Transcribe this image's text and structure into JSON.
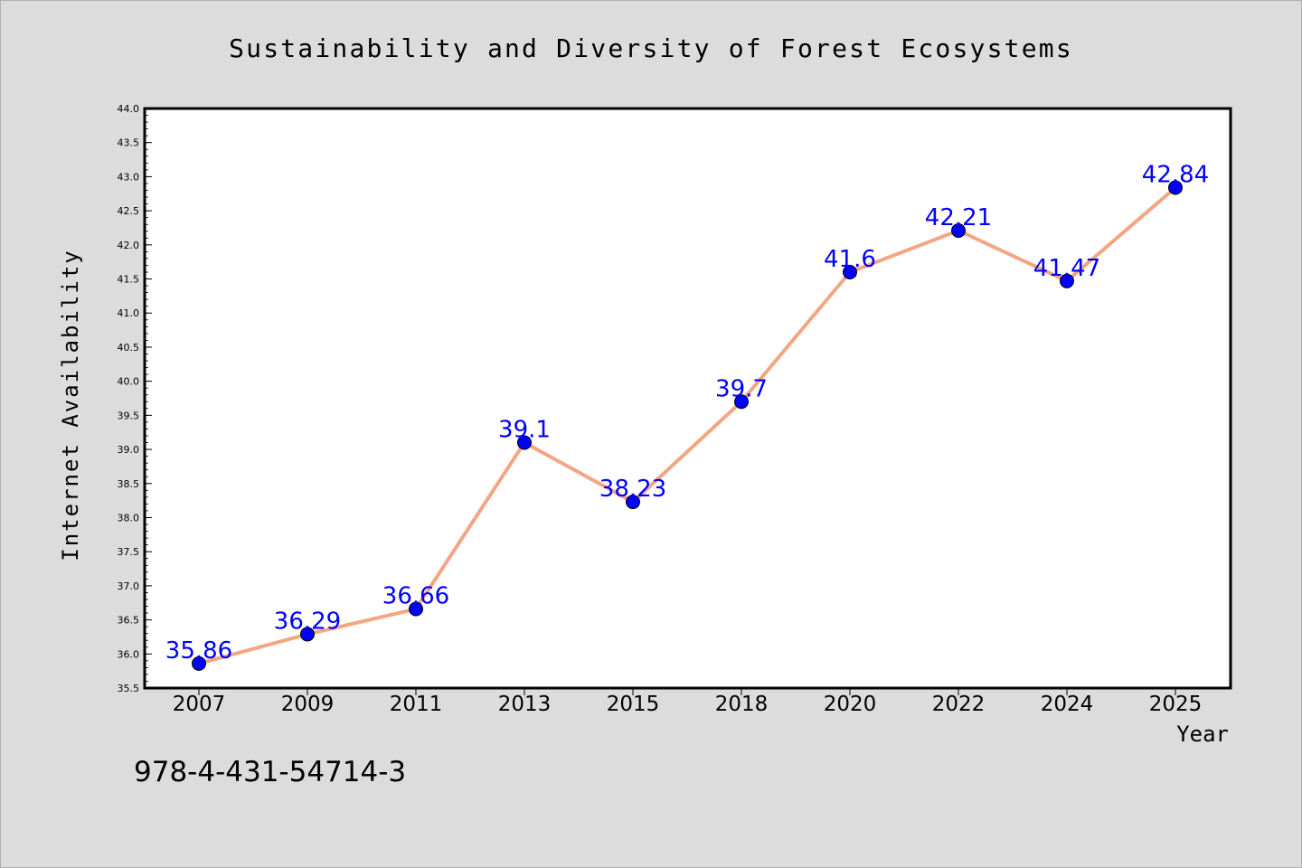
{
  "chart_data": {
    "type": "line",
    "title": "Sustainability and Diversity of Forest Ecosystems",
    "xlabel": "Year",
    "ylabel": "Internet Availability",
    "categories": [
      "2007",
      "2009",
      "2011",
      "2013",
      "2015",
      "2018",
      "2020",
      "2022",
      "2024",
      "2025"
    ],
    "series": [
      {
        "values": [
          35.86,
          36.29,
          36.66,
          39.1,
          38.23,
          39.7,
          41.6,
          42.21,
          41.47,
          42.84
        ],
        "labels": [
          "35.86",
          "36.29",
          "36.66",
          "39.1",
          "38.23",
          "39.7",
          "41.6",
          "42.21",
          "41.47",
          "42.84"
        ],
        "line_color": "#f4a582",
        "marker_color": "#0000ff"
      }
    ],
    "ylim": [
      35.5,
      44.0
    ],
    "yticks": [
      "35.5",
      "36.0",
      "36.5",
      "37.0",
      "37.5",
      "38.0",
      "38.5",
      "39.0",
      "39.5",
      "40.0",
      "40.5",
      "41.0",
      "41.5",
      "42.0",
      "42.5",
      "43.0",
      "43.5",
      "44.0"
    ],
    "grid": false,
    "label_color": "#0000ff"
  },
  "footer_text": "978-4-431-54714-3"
}
